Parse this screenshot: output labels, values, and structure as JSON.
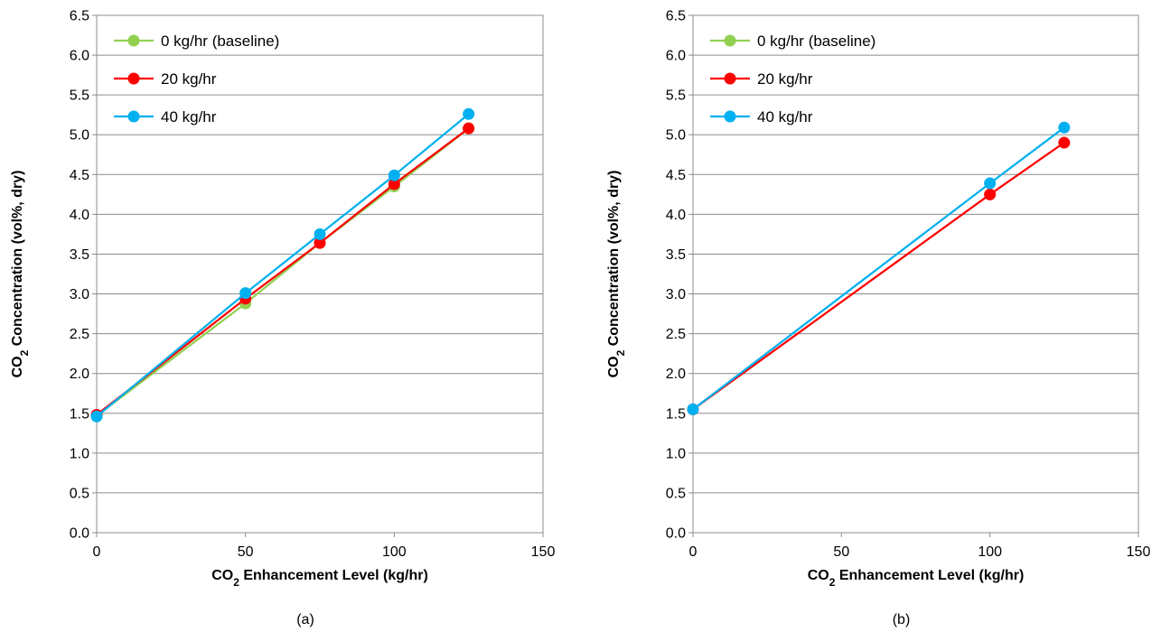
{
  "chart_data": [
    {
      "type": "line",
      "caption": "(a)",
      "xlabel": "CO₂ Enhancement Level (kg/hr)",
      "ylabel": "CO₂ Concentration (vol%, dry)",
      "xlim": [
        0,
        150
      ],
      "ylim": [
        0,
        6.5
      ],
      "x_ticks": [
        "0",
        "50",
        "100",
        "150"
      ],
      "y_ticks": [
        "0.0",
        "0.5",
        "1.0",
        "1.5",
        "2.0",
        "2.5",
        "3.0",
        "3.5",
        "4.0",
        "4.5",
        "5.0",
        "5.5",
        "6.0",
        "6.5"
      ],
      "grid": "horizontal",
      "legend_position": "top-left",
      "series": [
        {
          "name": "0 kg/hr (baseline)",
          "color": "#92d050",
          "x": [
            0,
            50,
            75,
            100,
            125
          ],
          "y": [
            1.47,
            2.88,
            3.64,
            4.35,
            5.08
          ]
        },
        {
          "name": "20 kg/hr",
          "color": "#ff0000",
          "x": [
            0,
            50,
            75,
            100,
            125
          ],
          "y": [
            1.48,
            2.94,
            3.64,
            4.38,
            5.08
          ]
        },
        {
          "name": "40 kg/hr",
          "color": "#00b0f0",
          "x": [
            0,
            50,
            75,
            100,
            125
          ],
          "y": [
            1.46,
            3.01,
            3.75,
            4.49,
            5.26
          ]
        }
      ]
    },
    {
      "type": "line",
      "caption": "(b)",
      "xlabel": "CO₂ Enhancement Level (kg/hr)",
      "ylabel": "CO₂ Concentration (vol%, dry)",
      "xlim": [
        0,
        150
      ],
      "ylim": [
        0,
        6.5
      ],
      "x_ticks": [
        "0",
        "50",
        "100",
        "150"
      ],
      "y_ticks": [
        "0.0",
        "0.5",
        "1.0",
        "1.5",
        "2.0",
        "2.5",
        "3.0",
        "3.5",
        "4.0",
        "4.5",
        "5.0",
        "5.5",
        "6.0",
        "6.5"
      ],
      "grid": "horizontal",
      "legend_position": "top-left",
      "series": [
        {
          "name": "0 kg/hr (baseline)",
          "color": "#92d050",
          "x": [],
          "y": []
        },
        {
          "name": "20 kg/hr",
          "color": "#ff0000",
          "x": [
            0,
            100,
            125
          ],
          "y": [
            1.55,
            4.25,
            4.9
          ]
        },
        {
          "name": "40 kg/hr",
          "color": "#00b0f0",
          "x": [
            0,
            100,
            125
          ],
          "y": [
            1.55,
            4.39,
            5.09
          ]
        }
      ]
    }
  ]
}
